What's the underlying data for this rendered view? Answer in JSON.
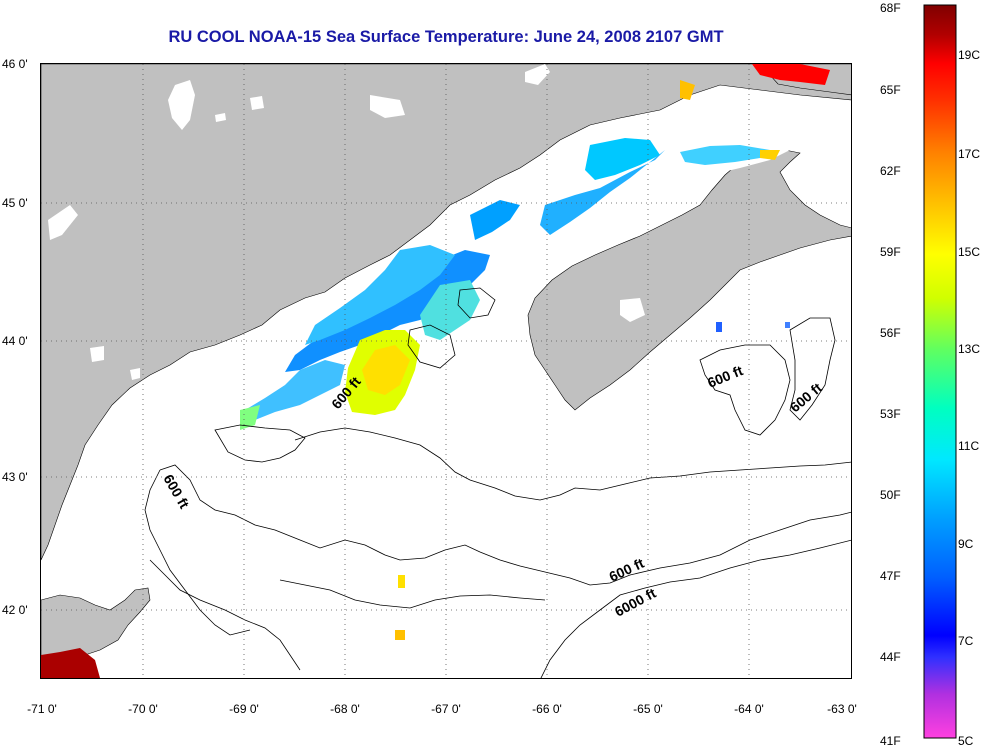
{
  "title": "RU COOL  NOAA-15  Sea Surface Temperature:  June 24, 2008 2107 GMT",
  "lon_ticks": [
    "-71 0'",
    "-70 0'",
    "-69 0'",
    "-68 0'",
    "-67 0'",
    "-66 0'",
    "-65 0'",
    "-64 0'",
    "-63 0'"
  ],
  "lat_ticks": [
    "46 0'",
    "45 0'",
    "44 0'",
    "43 0'",
    "42 0'"
  ],
  "colorbar": {
    "fahrenheit": [
      "68F",
      "65F",
      "62F",
      "59F",
      "56F",
      "53F",
      "50F",
      "47F",
      "44F",
      "41F"
    ],
    "celsius": [
      "19C",
      "17C",
      "15C",
      "13C",
      "11C",
      "9C",
      "7C",
      "5C"
    ]
  },
  "contour_labels": [
    "600 ft",
    "600 ft",
    "600 ft",
    "600 ft",
    "600 ft",
    "6000 ft"
  ],
  "colors": {
    "land": "#c0c0c0",
    "ocean_no_data": "#ffffff",
    "title": "#1a1aa6",
    "grid": "#555555"
  },
  "legend_scale": [
    "#ff00ff",
    "#0000ff",
    "#00ffff",
    "#ffff00",
    "#ff8000",
    "#ff0000",
    "#800000"
  ]
}
